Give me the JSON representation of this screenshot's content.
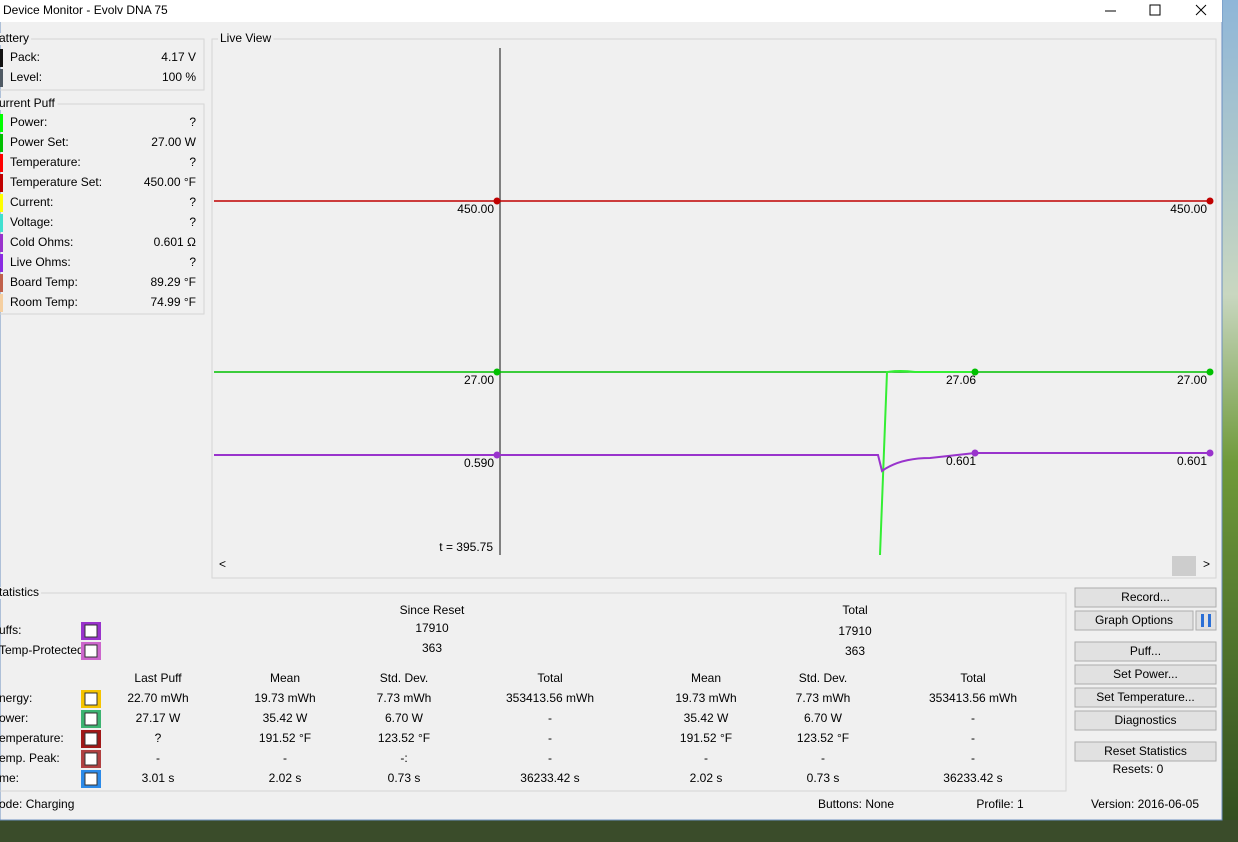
{
  "window": {
    "title": "Device Monitor - Evolv DNA 75"
  },
  "battery": {
    "title": "attery",
    "rows": [
      {
        "label": "Pack:",
        "value": "4.17 V",
        "color": "#111111"
      },
      {
        "label": "Level:",
        "value": "100 %",
        "color": "#505a64"
      }
    ]
  },
  "current_puff": {
    "title": "urrent Puff",
    "rows": [
      {
        "label": "Power:",
        "value": "?",
        "color": "#00ff00"
      },
      {
        "label": "Power Set:",
        "value": "27.00 W",
        "color": "#00c000"
      },
      {
        "label": "Temperature:",
        "value": "?",
        "color": "#ff0000"
      },
      {
        "label": "Temperature Set:",
        "value": "450.00 °F",
        "color": "#c00000"
      },
      {
        "label": "Current:",
        "value": "?",
        "color": "#ffff00"
      },
      {
        "label": "Voltage:",
        "value": "?",
        "color": "#40e0d0"
      },
      {
        "label": "Cold Ohms:",
        "value": "0.601 Ω",
        "color": "#9933cc"
      },
      {
        "label": "Live Ohms:",
        "value": "?",
        "color": "#8a2be2"
      },
      {
        "label": "Board Temp:",
        "value": "89.29 °F",
        "color": "#c0604a"
      },
      {
        "label": "Room Temp:",
        "value": "74.99 °F",
        "color": "#f5cfa0"
      }
    ]
  },
  "live_view": {
    "title": "Live View",
    "cursor_label": "t = 395.75",
    "labels": [
      "450.00",
      "450.00",
      "27.00",
      "27.06",
      "27.00",
      "0.590",
      "0.601",
      "0.601"
    ]
  },
  "statistics": {
    "title": "tatistics",
    "since_reset": "Since Reset",
    "total": "Total",
    "counts": [
      {
        "label": "uffs:",
        "since_reset": "17910",
        "total": "17910",
        "color": "#9933cc"
      },
      {
        "label": "Temp-Protected:",
        "since_reset": "363",
        "total": "363",
        "color": "#cc66cc"
      }
    ],
    "columns": [
      "Last Puff",
      "Mean",
      "Std. Dev.",
      "Total",
      "Mean",
      "Std. Dev.",
      "Total"
    ],
    "rows": [
      {
        "label": "nergy:",
        "color": "#f5c400",
        "cells": [
          "22.70 mWh",
          "19.73 mWh",
          "7.73 mWh",
          "353413.56 mWh",
          "19.73 mWh",
          "7.73 mWh",
          "353413.56 mWh"
        ]
      },
      {
        "label": "ower:",
        "color": "#3cb371",
        "cells": [
          "27.17 W",
          "35.42 W",
          "6.70 W",
          "-",
          "35.42 W",
          "6.70 W",
          "-"
        ]
      },
      {
        "label": "emperature:",
        "color": "#a01818",
        "cells": [
          "?",
          "191.52 °F",
          "123.52 °F",
          "-",
          "191.52 °F",
          "123.52 °F",
          "-"
        ]
      },
      {
        "label": "emp. Peak:",
        "color": "#b04040",
        "cells": [
          "-",
          "-",
          "-:",
          "-",
          "-",
          "-",
          "-"
        ]
      },
      {
        "label": "me:",
        "color": "#2b8ae8",
        "cells": [
          "3.01 s",
          "2.02 s",
          "0.73 s",
          "36233.42 s",
          "2.02 s",
          "0.73 s",
          "36233.42 s"
        ]
      }
    ]
  },
  "buttons": [
    "Record...",
    "Graph Options",
    "Puff...",
    "Set Power...",
    "Set Temperature...",
    "Diagnostics",
    "Reset Statistics"
  ],
  "resets": "Resets: 0",
  "status": {
    "mode": "ode: Charging",
    "buttons": "Buttons: None",
    "profile": "Profile: 1",
    "version": "Version: 2016-06-05"
  }
}
